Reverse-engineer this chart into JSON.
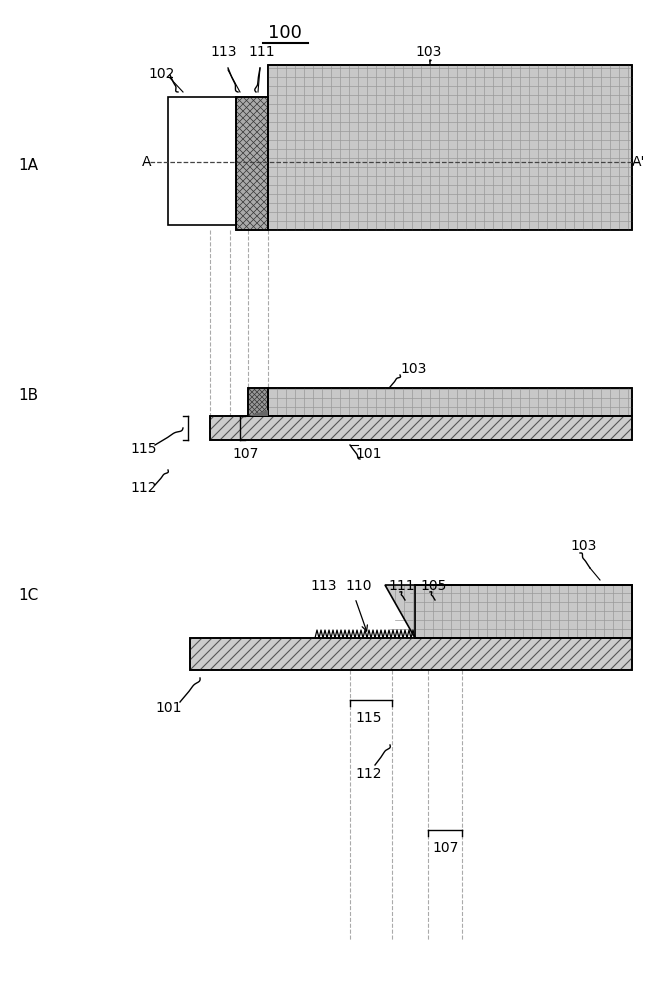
{
  "bg_color": "#ffffff",
  "line_color": "#000000",
  "fig_label_1A": "1A",
  "fig_label_1B": "1B",
  "fig_label_1C": "1C",
  "title": "100"
}
